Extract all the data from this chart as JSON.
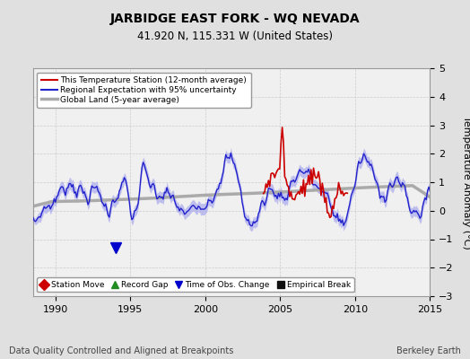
{
  "title": "JARBIDGE EAST FORK - WQ NEVADA",
  "subtitle": "41.920 N, 115.331 W (United States)",
  "xlabel_note": "Data Quality Controlled and Aligned at Breakpoints",
  "xlabel_right": "Berkeley Earth",
  "ylabel": "Temperature Anomaly (°C)",
  "xlim": [
    1988.5,
    2015.0
  ],
  "ylim": [
    -3,
    5
  ],
  "yticks": [
    -3,
    -2,
    -1,
    0,
    1,
    2,
    3,
    4,
    5
  ],
  "xticks": [
    1990,
    1995,
    2000,
    2005,
    2010,
    2015
  ],
  "bg_color": "#e0e0e0",
  "plot_bg_color": "#f0f0f0",
  "legend_line1": "This Temperature Station (12-month average)",
  "legend_line2": "Regional Expectation with 95% uncertainty",
  "legend_line3": "Global Land (5-year average)",
  "bottom_legend": [
    {
      "label": "Station Move",
      "color": "#cc0000",
      "marker": "D"
    },
    {
      "label": "Record Gap",
      "color": "#228B22",
      "marker": "^"
    },
    {
      "label": "Time of Obs. Change",
      "color": "#0000cc",
      "marker": "v"
    },
    {
      "label": "Empirical Break",
      "color": "#111111",
      "marker": "s"
    }
  ],
  "regional_color": "#2222cc",
  "uncertainty_color": "#aaaaee",
  "station_color": "#cc0000",
  "global_color": "#aaaaaa",
  "obs_change_x": 1994.0,
  "obs_change_y": -1.3
}
